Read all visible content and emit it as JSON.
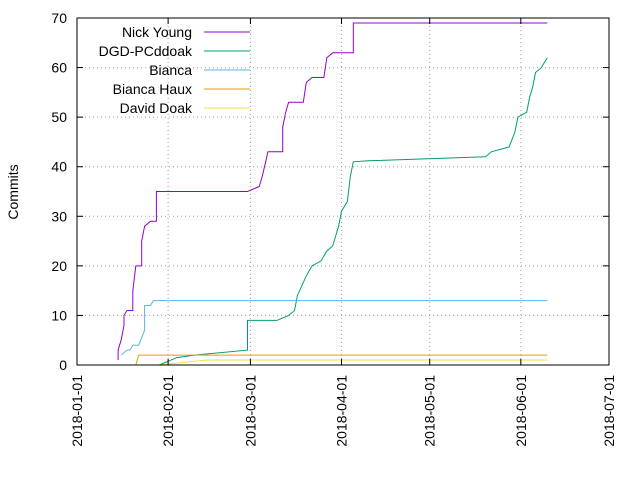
{
  "chart_data": {
    "type": "line",
    "title": "",
    "xlabel": "",
    "ylabel": "Commits",
    "x_axis_type": "date",
    "xlim": [
      "2018-01-01",
      "2018-07-01"
    ],
    "ylim": [
      0,
      70
    ],
    "x_ticks": [
      "2018-01-01",
      "2018-02-01",
      "2018-03-01",
      "2018-04-01",
      "2018-05-01",
      "2018-06-01",
      "2018-07-01"
    ],
    "y_ticks": [
      0,
      10,
      20,
      30,
      40,
      50,
      60,
      70
    ],
    "grid": true,
    "legend_position": "top-left",
    "step": true,
    "series": [
      {
        "name": "Nick Young",
        "color": "#9400d3",
        "points": [
          [
            "2018-01-15",
            1
          ],
          [
            "2018-01-15",
            3
          ],
          [
            "2018-01-16",
            5
          ],
          [
            "2018-01-17",
            8
          ],
          [
            "2018-01-17",
            10
          ],
          [
            "2018-01-18",
            11
          ],
          [
            "2018-01-20",
            11
          ],
          [
            "2018-01-20",
            15
          ],
          [
            "2018-01-21",
            20
          ],
          [
            "2018-01-23",
            20
          ],
          [
            "2018-01-23",
            25
          ],
          [
            "2018-01-24",
            28
          ],
          [
            "2018-01-26",
            29
          ],
          [
            "2018-01-28",
            29
          ],
          [
            "2018-01-28",
            35
          ],
          [
            "2018-02-28",
            35
          ],
          [
            "2018-03-04",
            36
          ],
          [
            "2018-03-05",
            38
          ],
          [
            "2018-03-07",
            43
          ],
          [
            "2018-03-12",
            43
          ],
          [
            "2018-03-12",
            48
          ],
          [
            "2018-03-13",
            51
          ],
          [
            "2018-03-14",
            53
          ],
          [
            "2018-03-19",
            53
          ],
          [
            "2018-03-20",
            57
          ],
          [
            "2018-03-22",
            58
          ],
          [
            "2018-03-26",
            58
          ],
          [
            "2018-03-27",
            62
          ],
          [
            "2018-03-29",
            63
          ],
          [
            "2018-04-05",
            63
          ],
          [
            "2018-04-05",
            69
          ],
          [
            "2018-06-10",
            69
          ]
        ]
      },
      {
        "name": "DGD-PCddoak",
        "color": "#009e73",
        "points": [
          [
            "2018-01-29",
            0
          ],
          [
            "2018-02-04",
            1.5
          ],
          [
            "2018-02-10",
            2
          ],
          [
            "2018-02-28",
            3
          ],
          [
            "2018-02-28",
            9
          ],
          [
            "2018-03-10",
            9
          ],
          [
            "2018-03-14",
            10
          ],
          [
            "2018-03-16",
            11
          ],
          [
            "2018-03-17",
            14
          ],
          [
            "2018-03-20",
            18
          ],
          [
            "2018-03-22",
            20
          ],
          [
            "2018-03-25",
            21
          ],
          [
            "2018-03-27",
            23
          ],
          [
            "2018-03-29",
            24
          ],
          [
            "2018-03-31",
            28
          ],
          [
            "2018-04-01",
            31
          ],
          [
            "2018-04-03",
            33
          ],
          [
            "2018-04-04",
            38
          ],
          [
            "2018-04-05",
            41
          ],
          [
            "2018-04-10",
            41.2
          ],
          [
            "2018-05-20",
            42
          ],
          [
            "2018-05-22",
            43
          ],
          [
            "2018-05-28",
            44
          ],
          [
            "2018-05-30",
            47
          ],
          [
            "2018-05-31",
            50
          ],
          [
            "2018-06-03",
            51
          ],
          [
            "2018-06-04",
            54
          ],
          [
            "2018-06-05",
            56
          ],
          [
            "2018-06-06",
            59
          ],
          [
            "2018-06-08",
            60
          ],
          [
            "2018-06-09",
            61
          ],
          [
            "2018-06-10",
            62
          ]
        ]
      },
      {
        "name": "Bianca",
        "color": "#56b4e9",
        "points": [
          [
            "2018-01-16",
            2
          ],
          [
            "2018-01-18",
            3
          ],
          [
            "2018-01-19",
            3
          ],
          [
            "2018-01-20",
            4
          ],
          [
            "2018-01-22",
            4
          ],
          [
            "2018-01-24",
            7
          ],
          [
            "2018-01-24",
            12
          ],
          [
            "2018-01-26",
            12
          ],
          [
            "2018-01-27",
            13
          ],
          [
            "2018-06-10",
            13
          ]
        ]
      },
      {
        "name": "Bianca Haux",
        "color": "#e69f00",
        "points": [
          [
            "2018-01-21",
            0
          ],
          [
            "2018-01-22",
            2
          ],
          [
            "2018-06-10",
            2
          ]
        ]
      },
      {
        "name": "David Doak",
        "color": "#f0e442",
        "points": [
          [
            "2018-01-29",
            0
          ],
          [
            "2018-02-14",
            1
          ],
          [
            "2018-06-10",
            1
          ]
        ]
      }
    ]
  }
}
